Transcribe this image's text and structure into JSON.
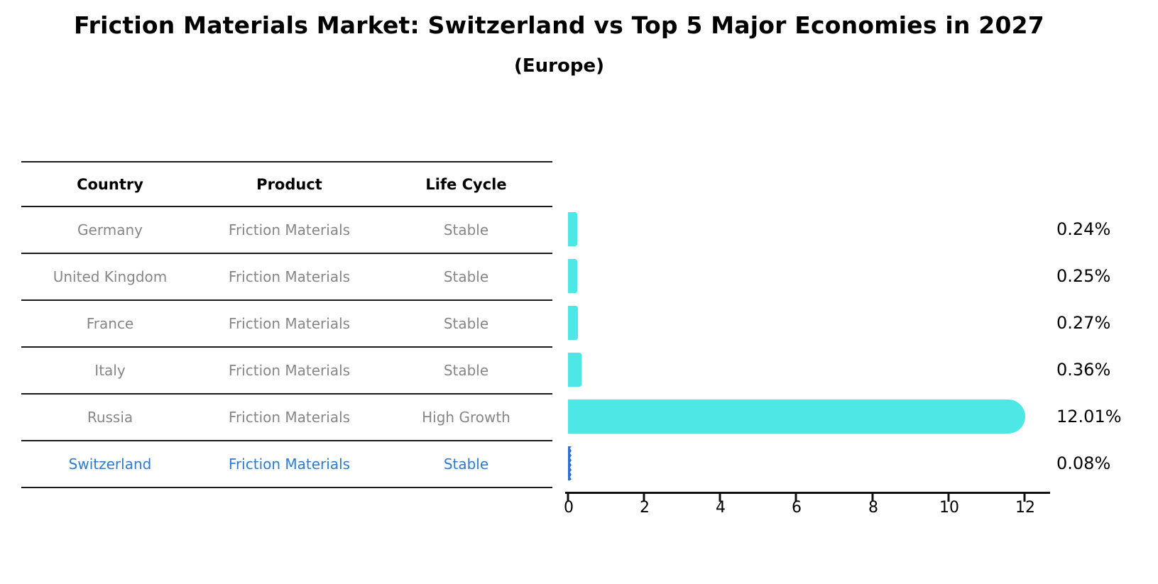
{
  "title": "Friction Materials Market: Switzerland vs Top 5 Major Economies in 2027",
  "subtitle": "(Europe)",
  "table": {
    "headers": [
      "Country",
      "Product",
      "Life Cycle"
    ],
    "rows": [
      {
        "country": "Germany",
        "product": "Friction Materials",
        "life_cycle": "Stable"
      },
      {
        "country": "United Kingdom",
        "product": "Friction Materials",
        "life_cycle": "Stable"
      },
      {
        "country": "France",
        "product": "Friction Materials",
        "life_cycle": "Stable"
      },
      {
        "country": "Italy",
        "product": "Friction Materials",
        "life_cycle": "Stable"
      },
      {
        "country": "Russia",
        "product": "Friction Materials",
        "life_cycle": "High Growth"
      },
      {
        "country": "Switzerland",
        "product": "Friction Materials",
        "life_cycle": "Stable"
      }
    ],
    "highlight_row_index": 5
  },
  "chart_data": {
    "type": "bar",
    "orientation": "horizontal",
    "title": "Friction Materials Market: Switzerland vs Top 5 Major Economies in 2027 (Europe)",
    "categories": [
      "Germany",
      "United Kingdom",
      "France",
      "Italy",
      "Russia",
      "Switzerland"
    ],
    "values": [
      0.24,
      0.25,
      0.27,
      0.36,
      12.01,
      0.08
    ],
    "value_labels": [
      "0.24%",
      "0.25%",
      "0.27%",
      "0.36%",
      "12.01%",
      "0.08%"
    ],
    "xticks": [
      "0",
      "2",
      "4",
      "6",
      "8",
      "10",
      "12"
    ],
    "xlim": [
      0,
      12.65
    ],
    "grid": false,
    "legend": "none",
    "highlight_index": 5,
    "bar_color": "#4de8e6",
    "highlight_bar_color": "#2e6fd2"
  },
  "colors": {
    "row_text": "#868686",
    "highlight_text": "#2b7bd3",
    "axis": "#111111",
    "table_line": "#1a1a1a"
  }
}
